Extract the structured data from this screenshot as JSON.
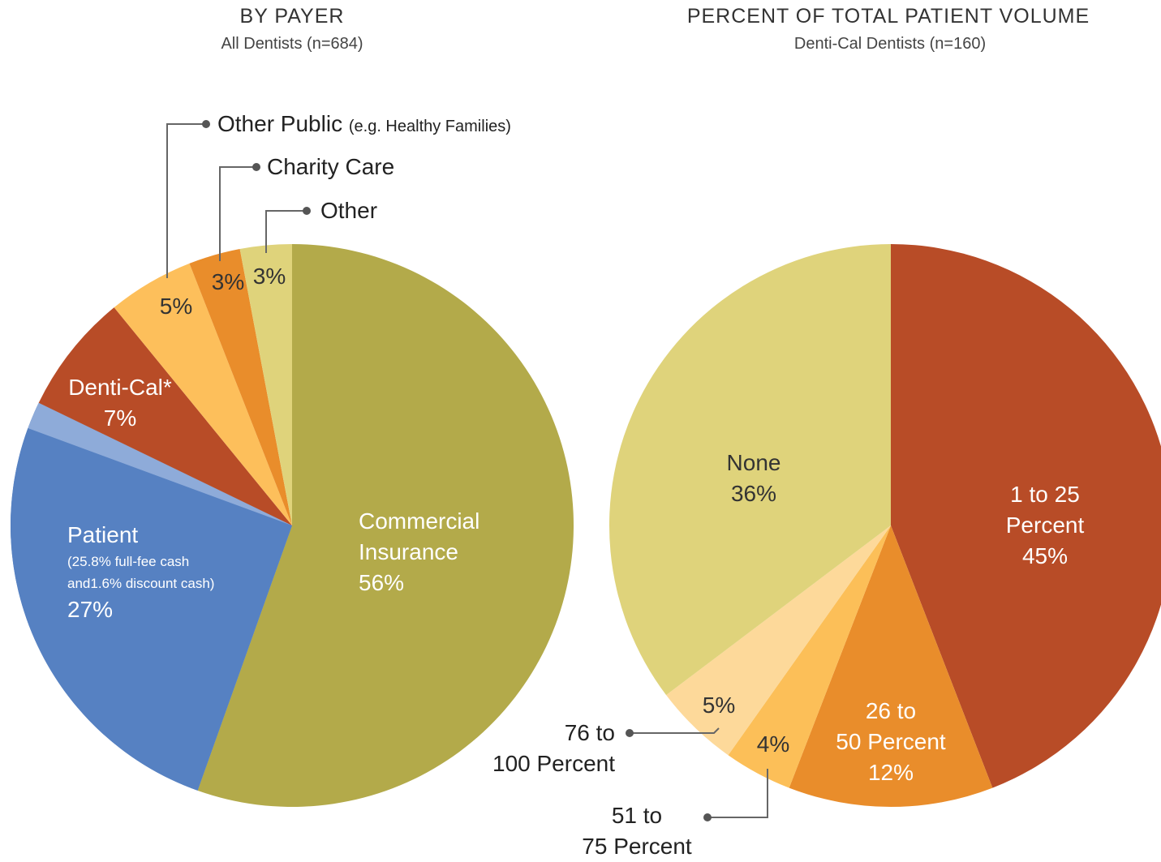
{
  "chart_data": [
    {
      "type": "pie",
      "title": "BY PAYER",
      "subtitle": "All Dentists (n=684)",
      "categories": [
        "Commercial\nInsurance",
        "Patient",
        "Denti-Cal*",
        "Other Public",
        "Charity Care",
        "Other"
      ],
      "values": [
        56,
        27,
        7,
        5,
        3,
        3
      ],
      "value_labels": [
        "56%",
        "27%",
        "7%",
        "5%",
        "3%",
        "3%"
      ],
      "colors": [
        "#b3aa4a",
        "#5681c2",
        "#b84c27",
        "#fdbf5b",
        "#e98d2b",
        "#dfd37b"
      ],
      "notes": {
        "Patient": "(25.8% full-fee cash\nand1.6% discount cash)",
        "Other Public": "(e.g. Healthy Families)"
      },
      "patient_parts": [
        {
          "value": 25.8,
          "color": "#5681c2"
        },
        {
          "value": 1.6,
          "color": "#8eabd9"
        }
      ]
    },
    {
      "type": "pie",
      "title": "PERCENT OF TOTAL PATIENT VOLUME",
      "subtitle": "Denti-Cal Dentists (n=160)",
      "categories": [
        "1 to 25 Percent",
        "26 to\n50 Percent",
        "51 to\n75 Percent",
        "76 to\n100 Percent",
        "None"
      ],
      "values": [
        45,
        12,
        4,
        5,
        36
      ],
      "value_labels": [
        "45%",
        "12%",
        "4%",
        "5%",
        "36%"
      ],
      "colors": [
        "#b84c27",
        "#e98d2b",
        "#fcbf58",
        "#fdd99a",
        "#dfd37b"
      ]
    }
  ]
}
